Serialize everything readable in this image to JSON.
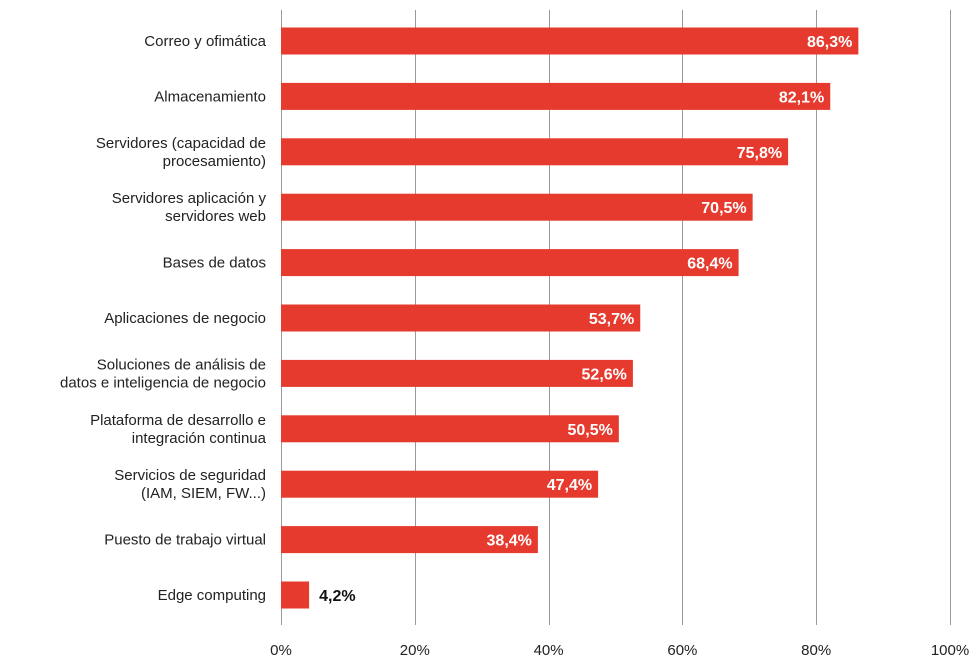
{
  "chart_data": {
    "type": "bar",
    "orientation": "horizontal",
    "title": "",
    "xlabel": "",
    "ylabel": "",
    "xlim": [
      0,
      100
    ],
    "grid": true,
    "colors": {
      "bar": "#e63a2e",
      "label_inside": "#ffffff",
      "label_outside": "#111111"
    },
    "ticks": [
      "0%",
      "20%",
      "40%",
      "60%",
      "80%",
      "100%"
    ],
    "tick_values": [
      0,
      20,
      40,
      60,
      80,
      100
    ],
    "categories": [
      [
        "Correo y ofimática"
      ],
      [
        "Almacenamiento"
      ],
      [
        "Servidores (capacidad de",
        "procesamiento)"
      ],
      [
        "Servidores aplicación y",
        "servidores web"
      ],
      [
        "Bases de datos"
      ],
      [
        "Aplicaciones de negocio"
      ],
      [
        "Soluciones de análisis de",
        "datos e inteligencia de negocio"
      ],
      [
        "Plataforma de desarrollo e",
        "integración continua"
      ],
      [
        "Servicios de seguridad",
        "(IAM, SIEM, FW...)"
      ],
      [
        "Puesto de trabajo virtual"
      ],
      [
        "Edge computing"
      ]
    ],
    "values": [
      86.3,
      82.1,
      75.8,
      70.5,
      68.4,
      53.7,
      52.6,
      50.5,
      47.4,
      38.4,
      4.2
    ],
    "value_labels": [
      "86,3%",
      "82,1%",
      "75,8%",
      "70,5%",
      "68,4%",
      "53,7%",
      "52,6%",
      "50,5%",
      "47,4%",
      "38,4%",
      "4,2%"
    ]
  }
}
